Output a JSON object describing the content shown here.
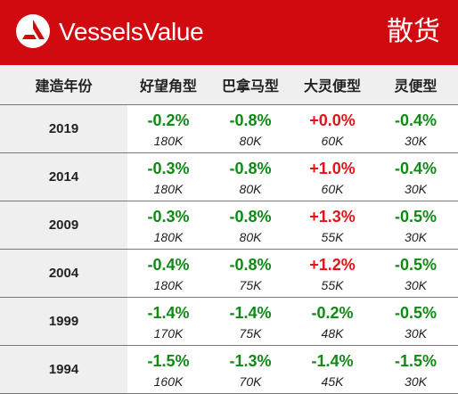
{
  "header": {
    "brand": "VesselsValue",
    "title": "散货",
    "brand_color": "#d10a10",
    "logo_icon": "vesselsvalue-logo-icon"
  },
  "table": {
    "columns": [
      "建造年份",
      "好望角型",
      "巴拿马型",
      "大灵便型",
      "灵便型"
    ],
    "rows": [
      {
        "year": "2019",
        "cells": [
          {
            "change": "-0.2%",
            "size": "180K"
          },
          {
            "change": "-0.8%",
            "size": "80K"
          },
          {
            "change": "+0.0%",
            "size": "60K"
          },
          {
            "change": "-0.4%",
            "size": "30K"
          }
        ]
      },
      {
        "year": "2014",
        "cells": [
          {
            "change": "-0.3%",
            "size": "180K"
          },
          {
            "change": "-0.8%",
            "size": "80K"
          },
          {
            "change": "+1.0%",
            "size": "60K"
          },
          {
            "change": "-0.4%",
            "size": "30K"
          }
        ]
      },
      {
        "year": "2009",
        "cells": [
          {
            "change": "-0.3%",
            "size": "180K"
          },
          {
            "change": "-0.8%",
            "size": "80K"
          },
          {
            "change": "+1.3%",
            "size": "55K"
          },
          {
            "change": "-0.5%",
            "size": "30K"
          }
        ]
      },
      {
        "year": "2004",
        "cells": [
          {
            "change": "-0.4%",
            "size": "180K"
          },
          {
            "change": "-0.8%",
            "size": "75K"
          },
          {
            "change": "+1.2%",
            "size": "55K"
          },
          {
            "change": "-0.5%",
            "size": "30K"
          }
        ]
      },
      {
        "year": "1999",
        "cells": [
          {
            "change": "-1.4%",
            "size": "170K"
          },
          {
            "change": "-1.4%",
            "size": "75K"
          },
          {
            "change": "-0.2%",
            "size": "48K"
          },
          {
            "change": "-0.5%",
            "size": "30K"
          }
        ]
      },
      {
        "year": "1994",
        "cells": [
          {
            "change": "-1.5%",
            "size": "160K"
          },
          {
            "change": "-1.3%",
            "size": "70K"
          },
          {
            "change": "-1.4%",
            "size": "45K"
          },
          {
            "change": "-1.5%",
            "size": "30K"
          }
        ]
      }
    ],
    "colors": {
      "negative": "#0f8a14",
      "positive": "#e0141a"
    }
  }
}
